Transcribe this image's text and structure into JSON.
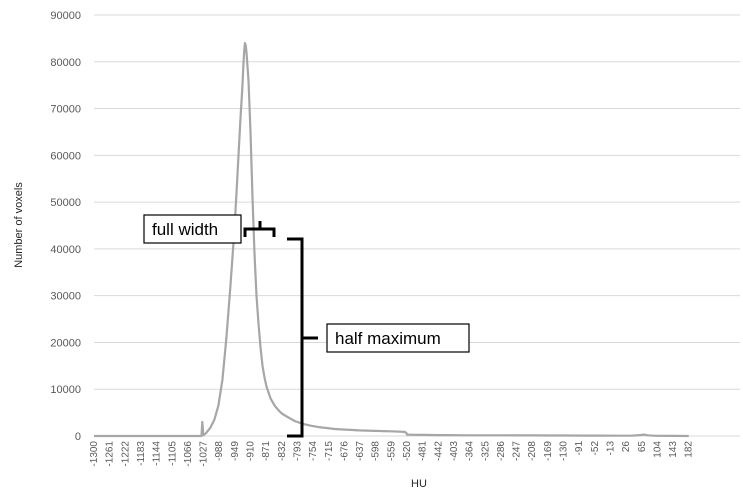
{
  "chart_data": {
    "type": "line",
    "title": "",
    "xlabel": "HU",
    "ylabel": "Number of voxels",
    "ylim": [
      0,
      90000
    ],
    "yticks": [
      0,
      10000,
      20000,
      30000,
      40000,
      50000,
      60000,
      70000,
      80000,
      90000
    ],
    "xlim": [
      -1300,
      182
    ],
    "xtick_labels": [
      "-1300",
      "-1261",
      "-1222",
      "-1183",
      "-1144",
      "-1105",
      "-1066",
      "-1027",
      "-988",
      "-949",
      "-910",
      "-871",
      "-832",
      "-793",
      "-754",
      "-715",
      "-676",
      "-637",
      "-598",
      "-559",
      "-520",
      "-481",
      "-442",
      "-403",
      "-364",
      "-325",
      "-286",
      "-247",
      "-208",
      "-169",
      "-130",
      "-91",
      "-52",
      "-13",
      "26",
      "65",
      "104",
      "143",
      "182"
    ],
    "grid": "horizontal",
    "line_color": "#a6a6a6",
    "series": [
      {
        "x": [
          -1300,
          -1100,
          -1032,
          -1031,
          -1030,
          -1029,
          -1028,
          -1027,
          -1020,
          -1010,
          -1000,
          -990,
          -980,
          -970,
          -960,
          -950,
          -945,
          -940,
          -935,
          -930,
          -928,
          -926,
          -924,
          -922,
          -920,
          -915,
          -910,
          -905,
          -900,
          -895,
          -890,
          -885,
          -880,
          -875,
          -870,
          -860,
          -850,
          -840,
          -832,
          -820,
          -810,
          -800,
          -780,
          -760,
          -740,
          -720,
          -700,
          -680,
          -660,
          -640,
          -620,
          -600,
          -580,
          -560,
          -540,
          -530,
          -525,
          -521,
          -520,
          -500,
          -480,
          -460,
          -440,
          -420,
          -400,
          -360,
          -320,
          -280,
          -240,
          -200,
          -160,
          -120,
          -80,
          -40,
          0,
          40,
          60,
          70,
          80,
          100,
          140,
          182
        ],
        "y": [
          0,
          0,
          0,
          1500,
          3000,
          2000,
          500,
          200,
          700,
          1800,
          3500,
          6500,
          12000,
          21000,
          32000,
          44000,
          52000,
          60000,
          68000,
          75000,
          79000,
          82000,
          84000,
          83500,
          82000,
          76000,
          65000,
          51000,
          39000,
          30000,
          24000,
          19000,
          15000,
          12500,
          10500,
          8000,
          6500,
          5500,
          4800,
          4200,
          3700,
          3200,
          2600,
          2200,
          1900,
          1700,
          1500,
          1400,
          1300,
          1200,
          1150,
          1100,
          1050,
          1000,
          950,
          900,
          850,
          600,
          300,
          250,
          230,
          210,
          200,
          190,
          180,
          160,
          150,
          140,
          130,
          120,
          110,
          100,
          90,
          80,
          70,
          60,
          200,
          300,
          150,
          50,
          20,
          0
        ]
      }
    ],
    "annotations": {
      "full_width": "full width",
      "half_maximum": "half maximum"
    }
  }
}
